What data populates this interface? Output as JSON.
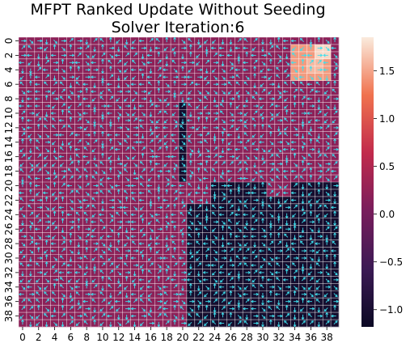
{
  "chart_data": {
    "type": "heatmap",
    "title_line1": "MFPT Ranked Update Without Seeding",
    "title_line2": "Solver Iteration:6",
    "grid_size": 40,
    "x_ticks": [
      "0",
      "2",
      "4",
      "6",
      "8",
      "10",
      "12",
      "14",
      "16",
      "18",
      "20",
      "22",
      "24",
      "26",
      "28",
      "30",
      "32",
      "34",
      "36",
      "38"
    ],
    "y_ticks": [
      "0",
      "2",
      "4",
      "6",
      "8",
      "10",
      "12",
      "14",
      "16",
      "18",
      "20",
      "22",
      "24",
      "26",
      "28",
      "30",
      "32",
      "34",
      "36",
      "38"
    ],
    "colorbar_ticks": [
      "1.5",
      "1.0",
      "0.5",
      "0.0",
      "−0.5",
      "−1.0"
    ],
    "colorbar_tick_values": [
      1.5,
      1.0,
      0.5,
      0.0,
      -0.5,
      -1.0
    ],
    "vmin": -1.18,
    "vmax": 1.85,
    "grid_lines": true,
    "arrow_color": "#3fe0ee",
    "regions": [
      {
        "rows": [
          0,
          39
        ],
        "cols": [
          0,
          39
        ],
        "value": 0.2
      },
      {
        "rows": [
          9,
          19
        ],
        "cols": [
          20,
          20
        ],
        "value": -1.05
      },
      {
        "rows": [
          20,
          39
        ],
        "cols": [
          21,
          39
        ],
        "value": -1.05
      },
      {
        "rows": [
          20,
          22
        ],
        "cols": [
          21,
          23
        ],
        "value": 0.2
      },
      {
        "rows": [
          20,
          21
        ],
        "cols": [
          31,
          33
        ],
        "value": 0.2
      },
      {
        "rows": [
          1,
          5
        ],
        "cols": [
          34,
          38
        ],
        "value": 1.45
      },
      {
        "rows": [
          1,
          2
        ],
        "cols": [
          37,
          38
        ],
        "value": 1.75
      },
      {
        "rows": [
          3,
          4
        ],
        "cols": [
          36,
          37
        ],
        "value": 1.6
      }
    ],
    "ylabel": "",
    "xlabel": ""
  }
}
